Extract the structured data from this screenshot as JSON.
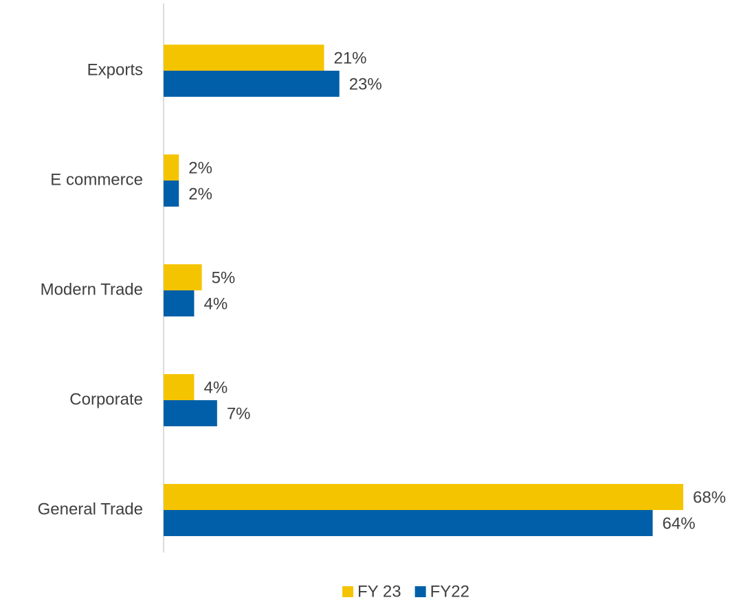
{
  "chart_data": {
    "type": "hbar",
    "categories": [
      "Exports",
      "E commerce",
      "Modern Trade",
      "Corporate",
      "General Trade"
    ],
    "series": [
      {
        "name": "FY 23",
        "color": "#f5c400",
        "values": [
          21,
          2,
          5,
          4,
          68
        ],
        "value_labels": [
          "21%",
          "2%",
          "5%",
          "4%",
          "68%"
        ]
      },
      {
        "name": "FY22",
        "color": "#005fa8",
        "values": [
          23,
          2,
          4,
          7,
          64
        ],
        "value_labels": [
          "23%",
          "2%",
          "4%",
          "7%",
          "64%"
        ]
      }
    ],
    "legend": "bottom"
  }
}
